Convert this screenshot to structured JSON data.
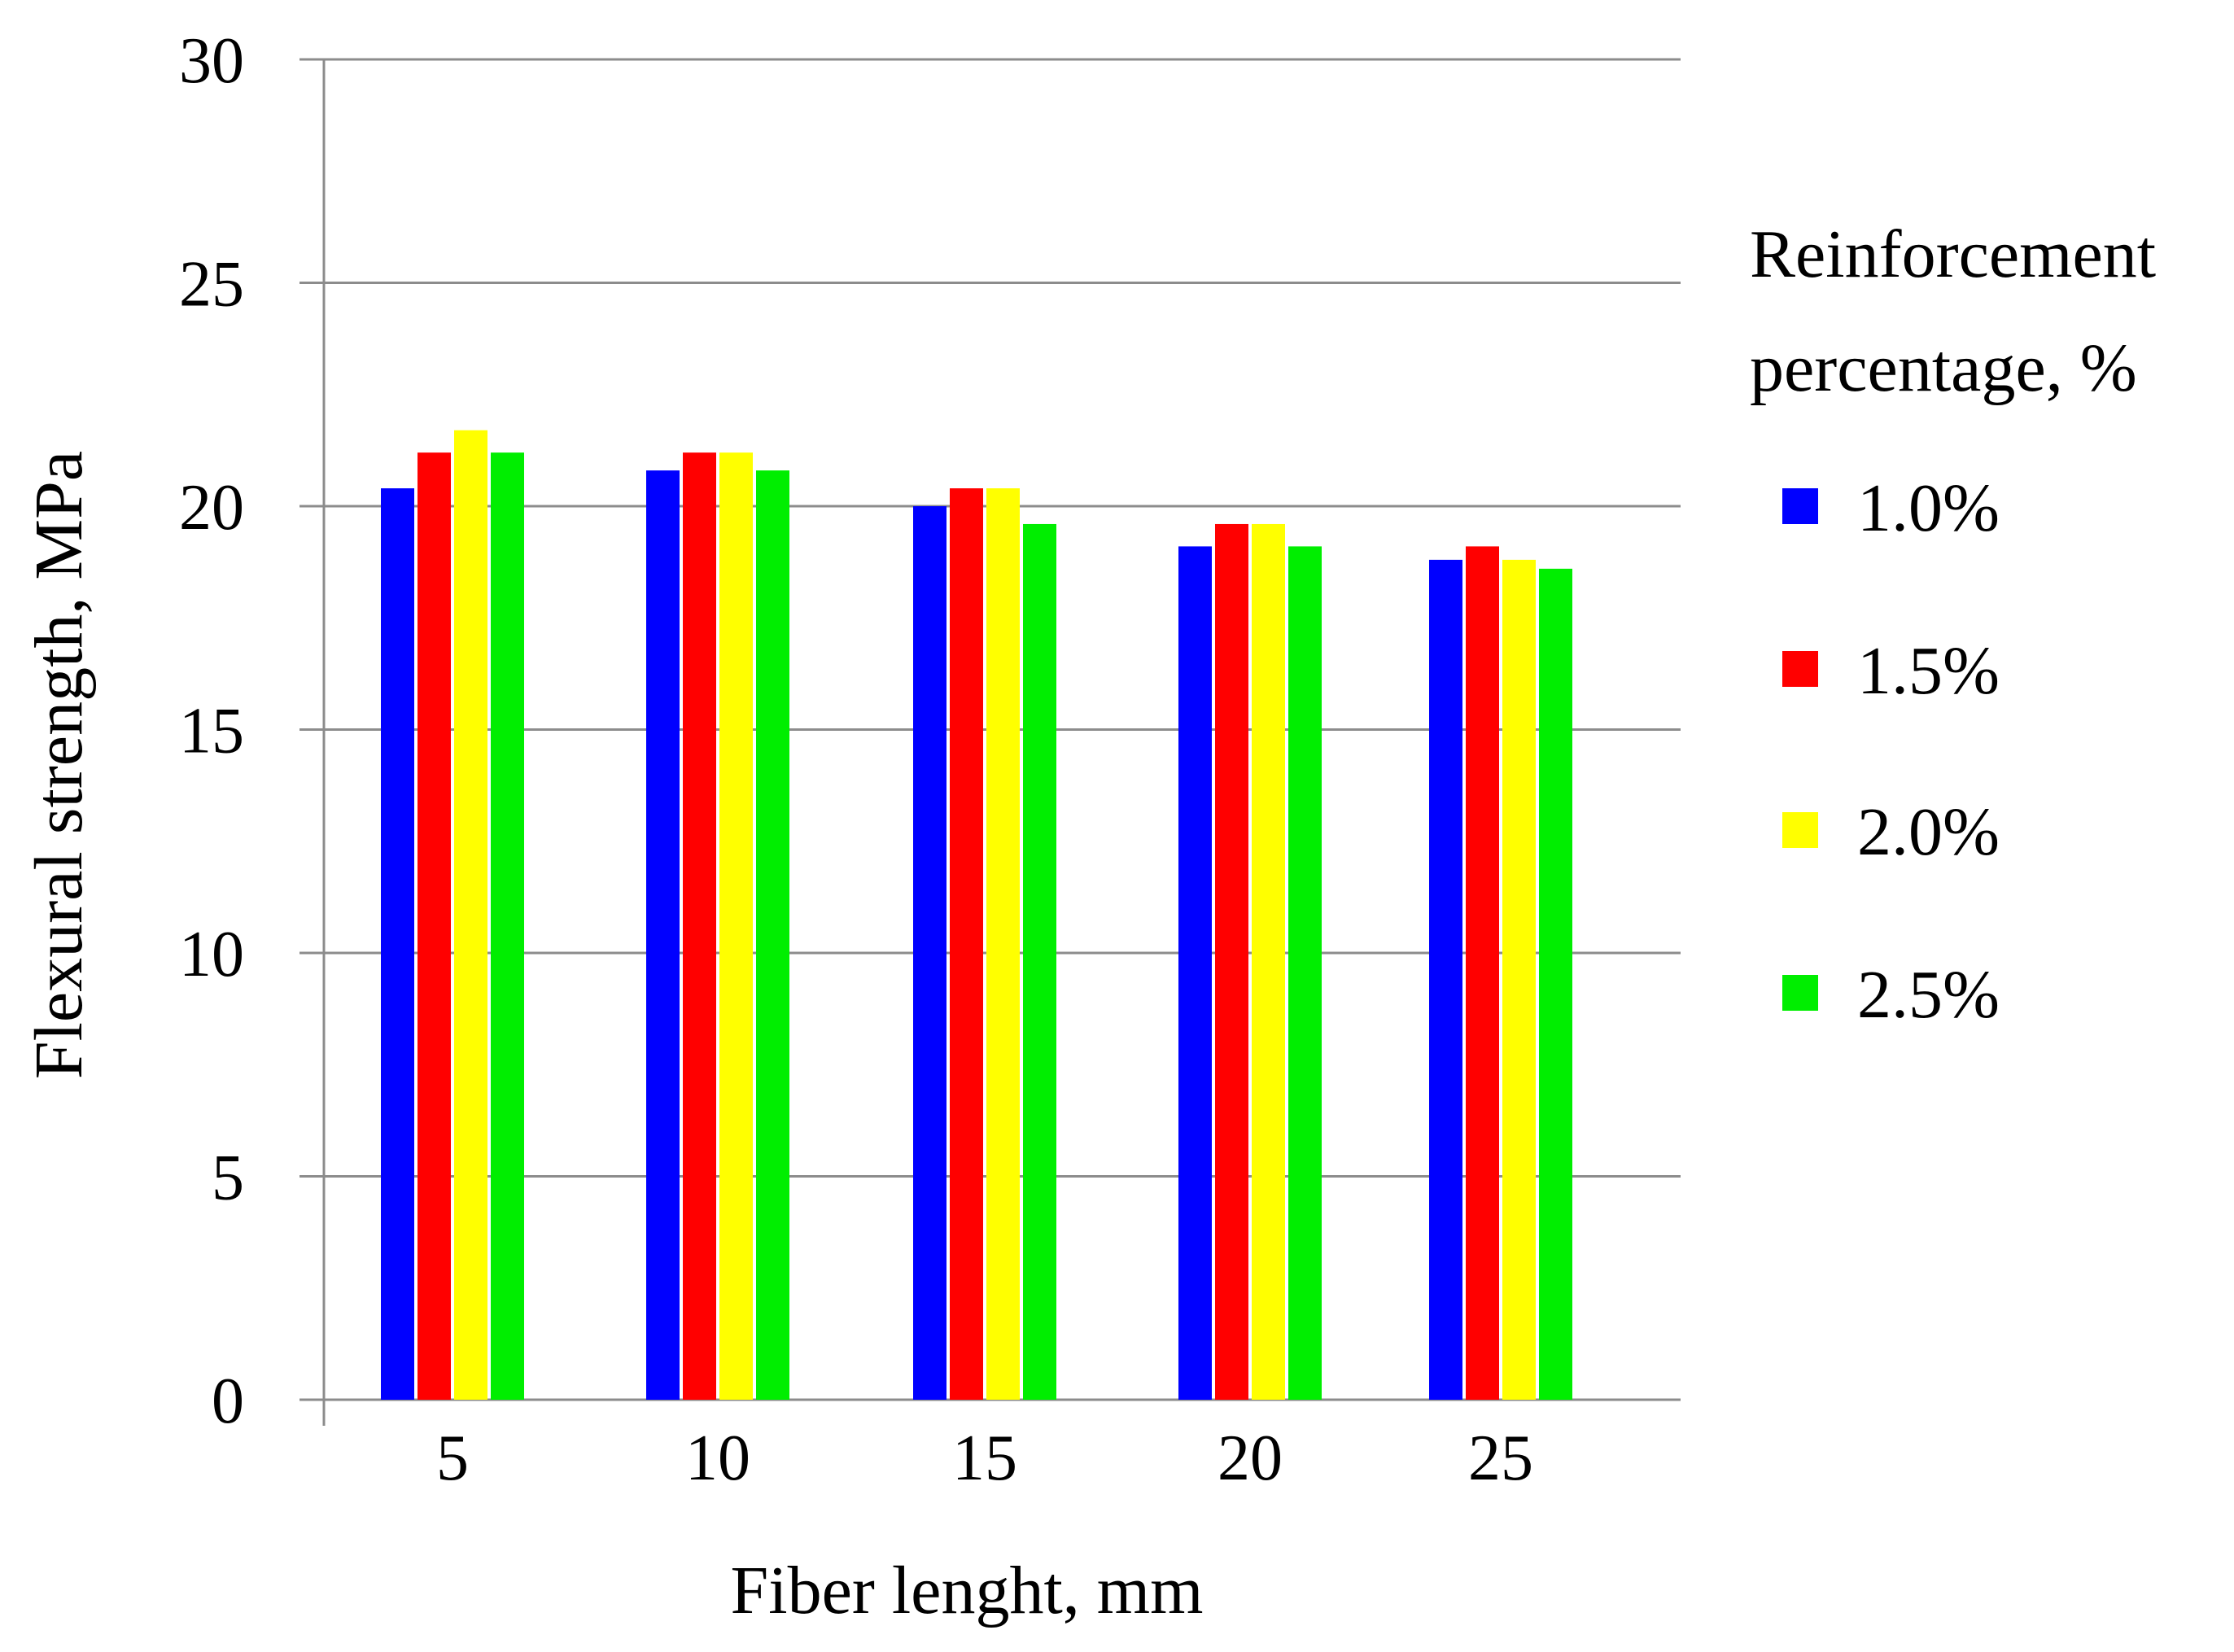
{
  "chart_data": {
    "type": "bar",
    "categories": [
      "5",
      "10",
      "15",
      "20",
      "25"
    ],
    "series": [
      {
        "name": "1.0%",
        "color": "#0000FF",
        "values": [
          20.4,
          20.8,
          20.0,
          19.1,
          18.8
        ]
      },
      {
        "name": "1.5%",
        "color": "#FF0000",
        "values": [
          21.2,
          21.2,
          20.4,
          19.6,
          19.1
        ]
      },
      {
        "name": "2.0%",
        "color": "#FFFF00",
        "values": [
          21.7,
          21.2,
          20.4,
          19.6,
          18.8
        ]
      },
      {
        "name": "2.5%",
        "color": "#00EE00",
        "values": [
          21.2,
          20.8,
          19.6,
          19.1,
          18.6
        ]
      }
    ],
    "xlabel": "Fiber lenght, mm",
    "ylabel": "Flexural strength, MPa",
    "ylim": [
      0,
      30
    ],
    "yticks": [
      "0",
      "5",
      "10",
      "15",
      "20",
      "25",
      "30"
    ],
    "grid": true,
    "legend": {
      "title_lines": [
        "Reinforcement",
        "percentage, %"
      ],
      "placement": "right"
    }
  }
}
